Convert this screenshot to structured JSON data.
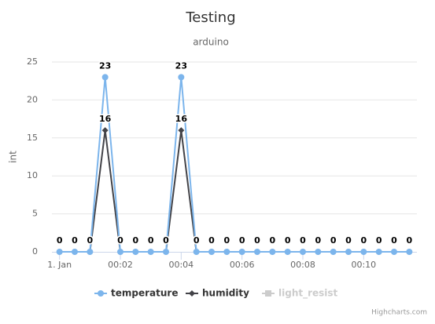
{
  "chart_data": {
    "type": "line",
    "title": "Testing",
    "subtitle": "arduino",
    "y_label": "int",
    "credits": "Highcharts.com",
    "x": [
      0,
      0.5,
      1,
      1.5,
      2,
      2.5,
      3,
      3.5,
      4,
      4.5,
      5,
      5.5,
      6,
      6.5,
      7,
      7.5,
      8,
      8.5,
      9,
      9.5,
      10,
      10.5,
      11,
      11.5
    ],
    "series": [
      {
        "name": "temperature",
        "color": "#7cb5ec",
        "marker": "circle",
        "visible": true,
        "values": [
          0,
          0,
          0,
          23,
          0,
          0,
          0,
          0,
          23,
          0,
          0,
          0,
          0,
          0,
          0,
          0,
          0,
          0,
          0,
          0,
          0,
          0,
          0,
          0
        ]
      },
      {
        "name": "humidity",
        "color": "#434348",
        "marker": "diamond",
        "visible": true,
        "values": [
          0,
          0,
          0,
          16,
          0,
          0,
          0,
          0,
          16,
          0,
          0,
          0,
          0,
          0,
          0,
          0,
          0,
          0,
          0,
          0,
          0,
          0,
          0,
          0
        ]
      },
      {
        "name": "light_resist",
        "color": "#cccccc",
        "marker": "square",
        "visible": false,
        "values": [
          null,
          null,
          null,
          null,
          null,
          null,
          null,
          null,
          null,
          null,
          null,
          null,
          null,
          null,
          null,
          null,
          null,
          null,
          null,
          null,
          null,
          null,
          null,
          null
        ]
      }
    ],
    "xlim": [
      -0.25,
      11.75
    ],
    "xticks": [
      {
        "value": 0,
        "label": "1. Jan"
      },
      {
        "value": 2,
        "label": "00:02"
      },
      {
        "value": 4,
        "label": "00:04"
      },
      {
        "value": 6,
        "label": "00:06"
      },
      {
        "value": 8,
        "label": "00:08"
      },
      {
        "value": 10,
        "label": "00:10"
      }
    ],
    "ylim": [
      0,
      25
    ],
    "yticks": [
      0,
      5,
      10,
      15,
      20,
      25
    ],
    "grid": true,
    "legend": "bottom"
  }
}
